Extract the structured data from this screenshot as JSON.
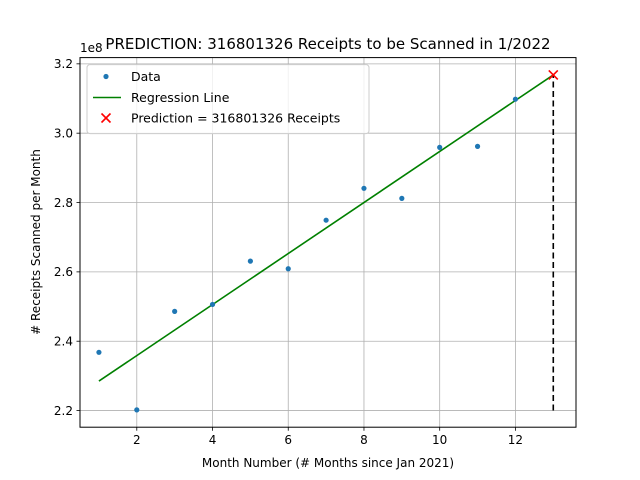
{
  "chart_data": {
    "type": "scatter",
    "title": "PREDICTION: 316801326 Receipts to be Scanned in 1/2022",
    "xlabel": "Month Number (# Months since Jan 2021)",
    "ylabel": "# Receipts Scanned per Month",
    "offset_label": "1e8",
    "xlim": [
      0.5,
      13.6
    ],
    "ylim": [
      2.152,
      3.218
    ],
    "xticks": [
      2,
      4,
      6,
      8,
      10,
      12
    ],
    "yticks": [
      2.2,
      2.4,
      2.6,
      2.8,
      3.0,
      3.2
    ],
    "ytick_labels": [
      "2.2",
      "2.4",
      "2.6",
      "2.8",
      "3.0",
      "3.2"
    ],
    "grid": true,
    "legend_position": "top-left",
    "series": [
      {
        "name": "Data",
        "kind": "scatter",
        "color": "#1f77b4",
        "x": [
          1,
          2,
          3,
          4,
          5,
          6,
          7,
          8,
          9,
          10,
          11,
          12
        ],
        "y": [
          2.368,
          2.202,
          2.486,
          2.506,
          2.631,
          2.609,
          2.749,
          2.841,
          2.812,
          2.959,
          2.962,
          3.098
        ]
      },
      {
        "name": "Regression Line",
        "kind": "line",
        "color": "#008000",
        "x": [
          1,
          13
        ],
        "y": [
          2.285,
          3.168
        ]
      },
      {
        "name": "Prediction = 316801326 Receipts",
        "kind": "marker",
        "color": "#ff0000",
        "x": [
          13
        ],
        "y": [
          3.168
        ]
      }
    ],
    "annotations": [
      {
        "kind": "dashed-vertical",
        "color": "#000000",
        "x": 13,
        "y_from": 2.2,
        "y_to": 3.168
      }
    ]
  }
}
